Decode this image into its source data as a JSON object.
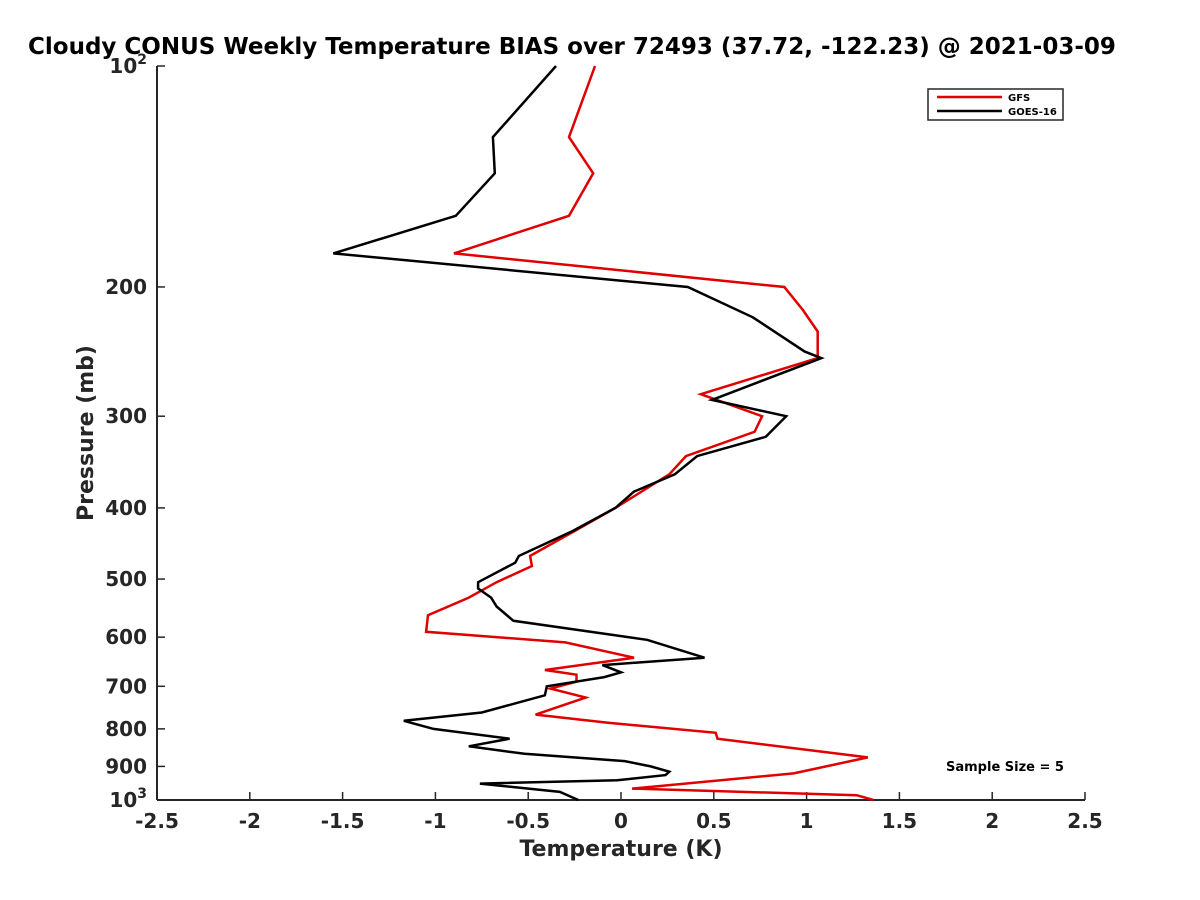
{
  "chart_data": {
    "type": "line",
    "title": "Cloudy CONUS Weekly Temperature BIAS over 72493 (37.72, -122.23) @ 2021-03-09",
    "xlabel": "Temperature (K)",
    "ylabel": "Pressure (mb)",
    "xlim": [
      -2.5,
      2.5
    ],
    "ylim": [
      100,
      1000
    ],
    "y_scale": "log",
    "y_reversed": true,
    "grid": false,
    "legend_position": "top-right",
    "x_ticks": [
      -2.5,
      -2,
      -1.5,
      -1,
      -0.5,
      0,
      0.5,
      1,
      1.5,
      2,
      2.5
    ],
    "x_tick_labels": [
      "-2.5",
      "-2",
      "-1.5",
      "-1",
      "-0.5",
      "0",
      "0.5",
      "1",
      "1.5",
      "2",
      "2.5"
    ],
    "y_ticks": [
      100,
      200,
      300,
      400,
      500,
      600,
      700,
      800,
      900,
      1000
    ],
    "y_tick_labels": [
      {
        "base": "10",
        "exp": "2"
      },
      {
        "base": "200",
        "exp": ""
      },
      {
        "base": "300",
        "exp": ""
      },
      {
        "base": "400",
        "exp": ""
      },
      {
        "base": "500",
        "exp": ""
      },
      {
        "base": "600",
        "exp": ""
      },
      {
        "base": "700",
        "exp": ""
      },
      {
        "base": "800",
        "exp": ""
      },
      {
        "base": "900",
        "exp": ""
      },
      {
        "base": "10",
        "exp": "3"
      }
    ],
    "annotation": "Sample Size = 5",
    "series": [
      {
        "name": "GFS",
        "color": "#e00000",
        "points": [
          [
            -0.14,
            100
          ],
          [
            -0.28,
            125
          ],
          [
            -0.15,
            140
          ],
          [
            -0.28,
            160
          ],
          [
            -0.9,
            180
          ],
          [
            0.88,
            200
          ],
          [
            0.98,
            215
          ],
          [
            1.06,
            230
          ],
          [
            1.06,
            250
          ],
          [
            0.43,
            280
          ],
          [
            0.76,
            300
          ],
          [
            0.72,
            315
          ],
          [
            0.35,
            340
          ],
          [
            0.26,
            360
          ],
          [
            -0.03,
            400
          ],
          [
            -0.25,
            430
          ],
          [
            -0.49,
            465
          ],
          [
            -0.48,
            480
          ],
          [
            -0.67,
            505
          ],
          [
            -0.82,
            530
          ],
          [
            -1.04,
            560
          ],
          [
            -1.05,
            590
          ],
          [
            -0.3,
            610
          ],
          [
            0.07,
            640
          ],
          [
            -0.41,
            665
          ],
          [
            -0.24,
            675
          ],
          [
            -0.24,
            690
          ],
          [
            -0.38,
            705
          ],
          [
            -0.19,
            725
          ],
          [
            -0.46,
            765
          ],
          [
            -0.07,
            785
          ],
          [
            0.51,
            810
          ],
          [
            0.52,
            825
          ],
          [
            1.33,
            875
          ],
          [
            0.93,
            920
          ],
          [
            0.06,
            965
          ],
          [
            1.27,
            985
          ],
          [
            1.36,
            1000
          ]
        ]
      },
      {
        "name": "GOES-16",
        "color": "#000000",
        "points": [
          [
            -0.35,
            100
          ],
          [
            -0.69,
            125
          ],
          [
            -0.68,
            140
          ],
          [
            -0.89,
            160
          ],
          [
            -1.55,
            180
          ],
          [
            0.36,
            200
          ],
          [
            0.71,
            220
          ],
          [
            0.99,
            245
          ],
          [
            1.08,
            250
          ],
          [
            0.49,
            285
          ],
          [
            0.89,
            300
          ],
          [
            0.78,
            320
          ],
          [
            0.41,
            340
          ],
          [
            0.29,
            360
          ],
          [
            0.07,
            380
          ],
          [
            -0.03,
            400
          ],
          [
            -0.26,
            430
          ],
          [
            -0.55,
            465
          ],
          [
            -0.57,
            475
          ],
          [
            -0.77,
            505
          ],
          [
            -0.77,
            515
          ],
          [
            -0.7,
            530
          ],
          [
            -0.67,
            545
          ],
          [
            -0.58,
            570
          ],
          [
            0.14,
            605
          ],
          [
            0.45,
            640
          ],
          [
            -0.1,
            655
          ],
          [
            0,
            670
          ],
          [
            -0.09,
            680
          ],
          [
            -0.4,
            700
          ],
          [
            -0.41,
            720
          ],
          [
            -0.75,
            760
          ],
          [
            -1.17,
            780
          ],
          [
            -1.01,
            800
          ],
          [
            -0.6,
            825
          ],
          [
            -0.82,
            845
          ],
          [
            -0.52,
            865
          ],
          [
            0.02,
            885
          ],
          [
            0.16,
            900
          ],
          [
            0.26,
            915
          ],
          [
            0.24,
            925
          ],
          [
            -0.02,
            940
          ],
          [
            -0.76,
            950
          ],
          [
            -0.33,
            975
          ],
          [
            -0.23,
            1000
          ]
        ]
      }
    ]
  }
}
